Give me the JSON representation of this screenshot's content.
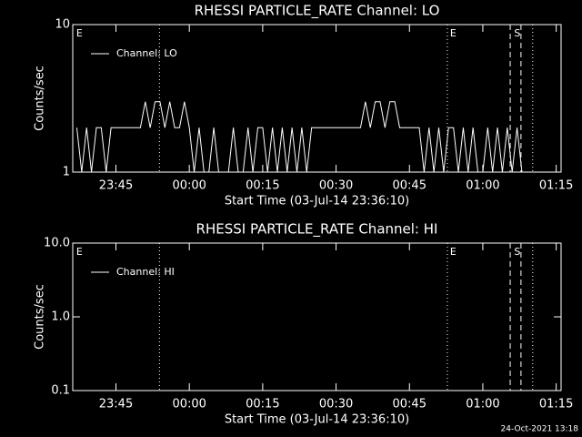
{
  "chart_data": [
    {
      "type": "line",
      "title": "RHESSI PARTICLE_RATE Channel: LO",
      "x_label": "Start Time (03-Jul-14 23:36:10)",
      "y_label": "Counts/sec",
      "log_y": true,
      "ylim": [
        1,
        10
      ],
      "yticks": [
        1,
        10
      ],
      "xlim": [
        36.17,
        136
      ],
      "xticks": [
        {
          "value": 45,
          "label": "23:45"
        },
        {
          "value": 60,
          "label": "00:00"
        },
        {
          "value": 75,
          "label": "00:15"
        },
        {
          "value": 90,
          "label": "00:30"
        },
        {
          "value": 105,
          "label": "00:45"
        },
        {
          "value": 120,
          "label": "01:00"
        },
        {
          "value": 135,
          "label": "01:15"
        }
      ],
      "legend": "upper left",
      "series": [
        {
          "name": "Channel: LO",
          "color": "#ffffff",
          "x": [
            37,
            38,
            39,
            40,
            41,
            42,
            43,
            44,
            45,
            46,
            47,
            48,
            49,
            50,
            51,
            52,
            53,
            54,
            55,
            56,
            57,
            58,
            59,
            60,
            61,
            62,
            63,
            64,
            65,
            66,
            67,
            68,
            69,
            70,
            71,
            72,
            73,
            74,
            75,
            76,
            77,
            78,
            79,
            80,
            81,
            82,
            83,
            84,
            85,
            86,
            87,
            88,
            89,
            90,
            91,
            92,
            93,
            94,
            95,
            96,
            97,
            98,
            99,
            100,
            101,
            102,
            103,
            104,
            105,
            106,
            107,
            108,
            109,
            110,
            111,
            112,
            113,
            114,
            115,
            116,
            117,
            118,
            119,
            120,
            121,
            122,
            123,
            124,
            125,
            126,
            127,
            128,
            129,
            130
          ],
          "values": [
            2,
            1,
            2,
            1,
            2,
            2,
            1,
            2,
            2,
            2,
            2,
            2,
            2,
            2,
            3,
            2,
            3,
            3,
            2,
            3,
            2,
            2,
            3,
            2,
            1,
            2,
            1,
            1,
            2,
            1,
            1,
            1,
            2,
            1,
            1,
            2,
            1,
            2,
            2,
            1,
            2,
            1,
            2,
            1,
            2,
            1,
            2,
            1,
            2,
            2,
            2,
            2,
            2,
            2,
            2,
            2,
            2,
            2,
            2,
            3,
            2,
            3,
            3,
            2,
            3,
            3,
            2,
            2,
            2,
            2,
            2,
            1,
            2,
            1,
            2,
            1,
            2,
            2,
            1,
            2,
            1,
            2,
            1,
            1,
            2,
            1,
            2,
            1,
            2,
            1,
            2,
            1,
            1,
            1
          ]
        }
      ],
      "markers": [
        {
          "x": 53.9,
          "style": "dotted"
        },
        {
          "x": 112.75,
          "style": "dotted"
        },
        {
          "x": 125.6,
          "style": "dashed"
        },
        {
          "x": 127.8,
          "style": "dashed"
        },
        {
          "x": 130.2,
          "style": "dotted"
        }
      ],
      "annotations": [
        {
          "text": "E",
          "x": 36.9
        },
        {
          "text": "E",
          "x": 113.3
        },
        {
          "text": "S",
          "x": 126.4
        }
      ]
    },
    {
      "type": "line",
      "title": "RHESSI PARTICLE_RATE Channel: HI",
      "x_label": "Start Time (03-Jul-14 23:36:10)",
      "y_label": "Counts/sec",
      "log_y": true,
      "ylim": [
        0.1,
        10
      ],
      "yticks": [
        0.1,
        {
          "value": 1,
          "label": "1.0"
        },
        {
          "value": 10,
          "label": "10.0"
        }
      ],
      "xlim": [
        36.17,
        136
      ],
      "xticks": [
        {
          "value": 45,
          "label": "23:45"
        },
        {
          "value": 60,
          "label": "00:00"
        },
        {
          "value": 75,
          "label": "00:15"
        },
        {
          "value": 90,
          "label": "00:30"
        },
        {
          "value": 105,
          "label": "00:45"
        },
        {
          "value": 120,
          "label": "01:00"
        },
        {
          "value": 135,
          "label": "01:15"
        }
      ],
      "legend": "upper left",
      "series": [
        {
          "name": "Channel: HI",
          "color": "#ffffff",
          "x": [],
          "values": []
        }
      ],
      "markers": [
        {
          "x": 53.9,
          "style": "dotted"
        },
        {
          "x": 112.75,
          "style": "dotted"
        },
        {
          "x": 125.6,
          "style": "dashed"
        },
        {
          "x": 127.8,
          "style": "dashed"
        },
        {
          "x": 130.2,
          "style": "dotted"
        }
      ],
      "annotations": [
        {
          "text": "E",
          "x": 36.9
        },
        {
          "text": "E",
          "x": 113.3
        },
        {
          "text": "S",
          "x": 126.4
        }
      ]
    }
  ],
  "footer": "24-Oct-2021 13:18"
}
